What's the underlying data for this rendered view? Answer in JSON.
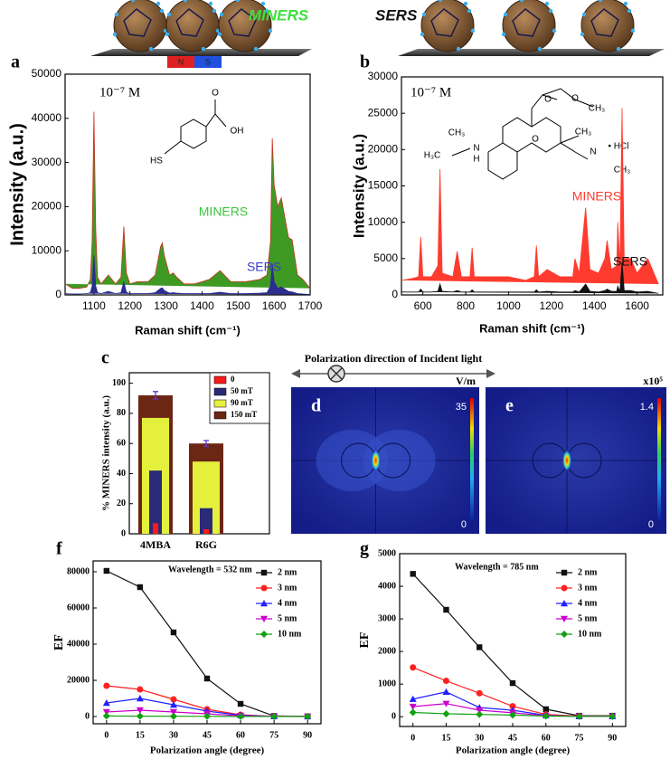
{
  "illustration": {
    "labels": [
      "MINERS",
      "SERS"
    ],
    "magnet": [
      "N",
      "S"
    ]
  },
  "chart_data": [
    {
      "type": "line",
      "label": "a",
      "annotation": "10⁻⁷ M",
      "molecule_labels": [
        "HS",
        "O",
        "OH"
      ],
      "xlabel": "Raman shift (cm⁻¹)",
      "ylabel": "Intensity (a.u.)",
      "x": [
        1020,
        1040,
        1060,
        1080,
        1090,
        1095,
        1100,
        1105,
        1110,
        1120,
        1140,
        1160,
        1175,
        1183,
        1190,
        1200,
        1220,
        1250,
        1270,
        1285,
        1290,
        1295,
        1310,
        1320,
        1330,
        1350,
        1380,
        1420,
        1450,
        1480,
        1520,
        1560,
        1580,
        1590,
        1595,
        1600,
        1610,
        1620,
        1640,
        1650,
        1665,
        1680,
        1700
      ],
      "xlim": [
        1020,
        1700
      ],
      "xticks": [
        1100,
        1200,
        1300,
        1400,
        1500,
        1600,
        1700
      ],
      "ylim": [
        0,
        50000
      ],
      "yticks": [
        0,
        10000,
        20000,
        30000,
        40000,
        50000
      ],
      "series": [
        {
          "name": "MINERS",
          "color": "#cc3322",
          "fill": "#3f9a24",
          "label_color": "#3ec43e",
          "values": [
            2500,
            1500,
            1500,
            1800,
            3500,
            12000,
            41500,
            15000,
            4000,
            2500,
            4500,
            2500,
            4000,
            15500,
            5000,
            2500,
            3000,
            3000,
            4500,
            11000,
            11800,
            9000,
            4500,
            5000,
            4000,
            2500,
            2500,
            3500,
            5500,
            3000,
            3000,
            3500,
            4500,
            12000,
            35500,
            25000,
            20000,
            22000,
            13000,
            12500,
            4500,
            3500,
            1500
          ]
        },
        {
          "name": "SERS",
          "color": "#2b2d8f",
          "fill": "#2b2d8f",
          "label_color": "#3b3bc8",
          "values": [
            300,
            200,
            200,
            300,
            500,
            2000,
            9000,
            2000,
            500,
            300,
            800,
            300,
            500,
            3000,
            600,
            300,
            300,
            300,
            500,
            1500,
            1600,
            1000,
            400,
            500,
            400,
            300,
            300,
            300,
            600,
            300,
            300,
            400,
            500,
            2000,
            7000,
            3000,
            1500,
            1800,
            800,
            700,
            300,
            200,
            100
          ]
        }
      ]
    },
    {
      "type": "line",
      "label": "b",
      "annotation": "10⁻⁷ M",
      "molecule_labels": [
        "CH₃",
        "H₃C",
        "N",
        "H",
        "O",
        "O",
        "O",
        "CH₃",
        "CH₃",
        "N",
        "• HCl",
        "CH₃"
      ],
      "xlabel": "Raman shift (cm⁻¹)",
      "ylabel": "Intensity (a.u.)",
      "x": [
        500,
        540,
        580,
        590,
        600,
        640,
        670,
        680,
        690,
        740,
        760,
        780,
        820,
        830,
        840,
        900,
        1000,
        1080,
        1120,
        1130,
        1140,
        1180,
        1240,
        1300,
        1310,
        1330,
        1360,
        1380,
        1420,
        1450,
        1460,
        1480,
        1505,
        1510,
        1520,
        1530,
        1540,
        1570,
        1600,
        1650,
        1700
      ],
      "xlim": [
        500,
        1720
      ],
      "xticks": [
        600,
        800,
        1000,
        1200,
        1400,
        1600
      ],
      "ylim": [
        0,
        30000
      ],
      "yticks": [
        0,
        5000,
        10000,
        15000,
        20000,
        25000,
        30000
      ],
      "series": [
        {
          "name": "MINERS",
          "color": "#ff3b2f",
          "fill": "#ff3b2f",
          "label_color": "#ff3b2f",
          "values": [
            2000,
            2200,
            2500,
            8000,
            2500,
            2500,
            4000,
            17300,
            3000,
            2500,
            6000,
            2500,
            2500,
            6500,
            2500,
            2500,
            2500,
            2000,
            2500,
            6800,
            2500,
            3500,
            2500,
            2500,
            5000,
            3000,
            12000,
            3500,
            3000,
            5000,
            7500,
            3500,
            4000,
            10000,
            4000,
            25700,
            5000,
            5000,
            3000,
            5000,
            1500
          ]
        },
        {
          "name": "SERS",
          "color": "#111111",
          "fill": "#111111",
          "label_color": "#111111",
          "values": [
            400,
            400,
            400,
            800,
            400,
            400,
            500,
            1500,
            500,
            400,
            600,
            400,
            400,
            700,
            400,
            400,
            400,
            400,
            400,
            700,
            400,
            500,
            400,
            400,
            600,
            400,
            1500,
            500,
            400,
            600,
            800,
            500,
            500,
            1200,
            500,
            4500,
            600,
            600,
            400,
            500,
            200
          ]
        }
      ]
    },
    {
      "type": "bar",
      "label": "c",
      "ylabel": "% MINERS intensity (a.u.)",
      "categories": [
        "4MBA",
        "R6G"
      ],
      "ylim": [
        0,
        107
      ],
      "yticks": [
        0,
        20,
        40,
        60,
        80,
        100
      ],
      "series": [
        {
          "name": "0",
          "color": "#ff1a1a",
          "values": [
            7,
            3
          ]
        },
        {
          "name": "50 mT",
          "color": "#2a2a78",
          "values": [
            42,
            17
          ]
        },
        {
          "name": "90 mT",
          "color": "#e4f03c",
          "values": [
            77,
            48
          ]
        },
        {
          "name": "150 mT",
          "color": "#6b2614",
          "values": [
            92,
            60
          ],
          "errors": [
            2.5,
            2
          ],
          "error_color": "#5a3ad6"
        }
      ]
    },
    {
      "type": "line",
      "label": "f",
      "annotation": "Wavelength = 532 nm",
      "xlabel": "Polarization angle (degree)",
      "ylabel": "EF",
      "x": [
        0,
        15,
        30,
        45,
        60,
        75,
        90
      ],
      "xlim": [
        -6,
        96
      ],
      "xticks": [
        0,
        15,
        30,
        45,
        60,
        75,
        90
      ],
      "ylim": [
        -4000,
        86000
      ],
      "yticks": [
        0,
        20000,
        40000,
        60000,
        80000
      ],
      "series": [
        {
          "name": "2 nm",
          "color": "#111111",
          "marker": "square",
          "values": [
            80500,
            71500,
            46500,
            21000,
            7000,
            300,
            100
          ]
        },
        {
          "name": "3 nm",
          "color": "#ff2020",
          "marker": "circle",
          "values": [
            17000,
            15000,
            9500,
            4000,
            1000,
            100,
            50
          ]
        },
        {
          "name": "4 nm",
          "color": "#2020ff",
          "marker": "triangle",
          "values": [
            7500,
            10000,
            6500,
            3000,
            700,
            80,
            30
          ]
        },
        {
          "name": "5 nm",
          "color": "#cc00cc",
          "marker": "triangle-down",
          "values": [
            2500,
            3500,
            2500,
            1500,
            400,
            50,
            20
          ]
        },
        {
          "name": "10 nm",
          "color": "#10a010",
          "marker": "diamond",
          "values": [
            300,
            200,
            150,
            100,
            50,
            20,
            10
          ]
        }
      ]
    },
    {
      "type": "line",
      "label": "g",
      "annotation": "Wavelength = 785 nm",
      "xlabel": "Polarization angle (degree)",
      "ylabel": "EF",
      "x": [
        0,
        15,
        30,
        45,
        60,
        75,
        90
      ],
      "xlim": [
        -6,
        96
      ],
      "xticks": [
        0,
        15,
        30,
        45,
        60,
        75,
        90
      ],
      "ylim": [
        -300,
        5000
      ],
      "yticks": [
        0,
        1000,
        2000,
        3000,
        4000,
        5000
      ],
      "series": [
        {
          "name": "2 nm",
          "color": "#111111",
          "marker": "square",
          "values": [
            4380,
            3280,
            2130,
            1030,
            230,
            30,
            30
          ]
        },
        {
          "name": "3 nm",
          "color": "#ff2020",
          "marker": "circle",
          "values": [
            1510,
            1100,
            720,
            320,
            70,
            20,
            20
          ]
        },
        {
          "name": "4 nm",
          "color": "#2020ff",
          "marker": "triangle",
          "values": [
            540,
            760,
            280,
            200,
            40,
            10,
            10
          ]
        },
        {
          "name": "5 nm",
          "color": "#cc00cc",
          "marker": "triangle-down",
          "values": [
            310,
            400,
            200,
            120,
            30,
            10,
            10
          ]
        },
        {
          "name": "10 nm",
          "color": "#10a010",
          "marker": "diamond",
          "values": [
            130,
            90,
            70,
            50,
            20,
            10,
            10
          ]
        }
      ]
    }
  ],
  "field_maps": {
    "title": "Polarization direction of Incident light",
    "maps": [
      {
        "label": "d",
        "unit": "V/m",
        "max": 35,
        "min": 0
      },
      {
        "label": "e",
        "unit": "x10⁵",
        "max": 1.4,
        "min": 0
      }
    ]
  }
}
